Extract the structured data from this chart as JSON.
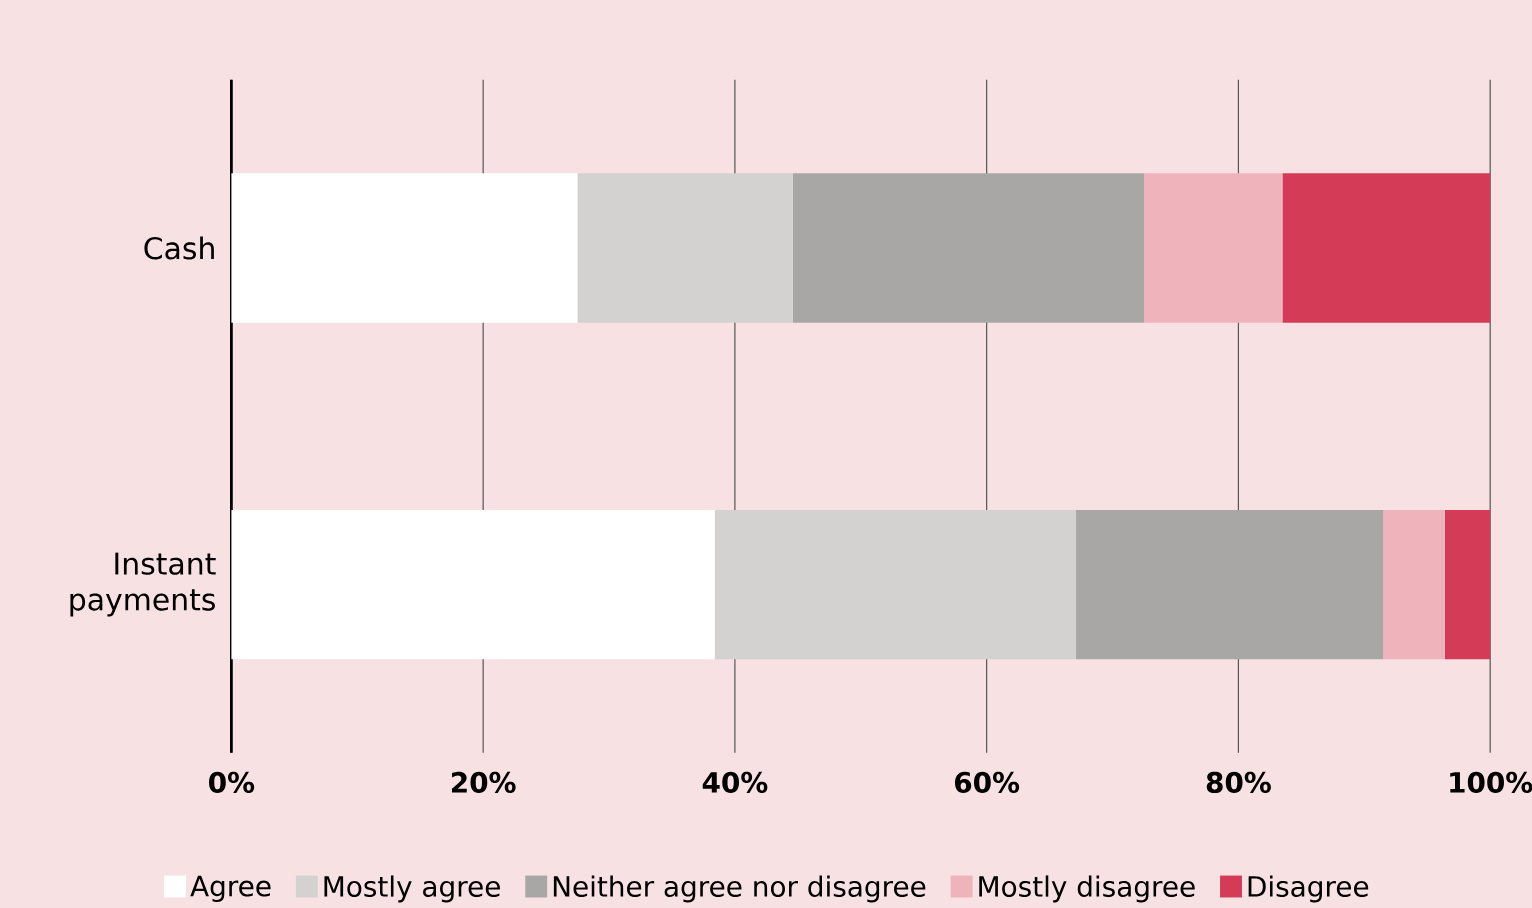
{
  "chart_data": {
    "type": "bar",
    "orientation": "horizontal",
    "stacked": true,
    "categories": [
      "Cash",
      "Instant payments"
    ],
    "series": [
      {
        "name": "Agree",
        "color": "#ffffff",
        "values": [
          27.5,
          38.4
        ]
      },
      {
        "name": "Mostly agree",
        "color": "#d3d2d0",
        "values": [
          17.1,
          28.7
        ]
      },
      {
        "name": "Neither agree nor disagree",
        "color": "#a8a7a5",
        "values": [
          27.9,
          24.4
        ]
      },
      {
        "name": "Mostly disagree",
        "color": "#efb3bb",
        "values": [
          11.0,
          4.9
        ]
      },
      {
        "name": "Disagree",
        "color": "#d33b57",
        "values": [
          16.5,
          3.6
        ]
      }
    ],
    "xlim": [
      0,
      100
    ],
    "xticks": [
      {
        "value": 0,
        "label": "0%"
      },
      {
        "value": 20,
        "label": "20%"
      },
      {
        "value": 40,
        "label": "40%"
      },
      {
        "value": 60,
        "label": "60%"
      },
      {
        "value": 80,
        "label": "80%"
      },
      {
        "value": 100,
        "label": "100%"
      }
    ],
    "grid": "x",
    "legend": "bottom"
  }
}
